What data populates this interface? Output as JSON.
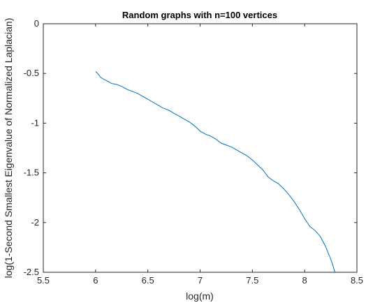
{
  "chart_data": {
    "type": "line",
    "title": "Random graphs with n=100 vertices",
    "xlabel": "log(m)",
    "ylabel": "log(1-Second Smallest Eigenvalue of Normalized Laplacian)",
    "xlim": [
      5.5,
      8.5
    ],
    "ylim": [
      -2.5,
      0
    ],
    "xticks": [
      5.5,
      6,
      6.5,
      7,
      7.5,
      8,
      8.5
    ],
    "xtick_labels": [
      "5.5",
      "6",
      "6.5",
      "7",
      "7.5",
      "8",
      "8.5"
    ],
    "yticks": [
      -2.5,
      -2,
      -1.5,
      -1,
      -0.5,
      0
    ],
    "ytick_labels": [
      "-2.5",
      "-2",
      "-1.5",
      "-1",
      "-0.5",
      "0"
    ],
    "grid": false,
    "line_color": "#0072bd",
    "series": [
      {
        "x": [
          6.0,
          6.02,
          6.05,
          6.08,
          6.12,
          6.15,
          6.2,
          6.25,
          6.3,
          6.35,
          6.4,
          6.45,
          6.5,
          6.55,
          6.6,
          6.65,
          6.7,
          6.75,
          6.8,
          6.85,
          6.9,
          6.95,
          7.0,
          7.05,
          7.1,
          7.15,
          7.2,
          7.25,
          7.3,
          7.35,
          7.4,
          7.45,
          7.5,
          7.55,
          7.6,
          7.65,
          7.7,
          7.75,
          7.8,
          7.85,
          7.9,
          7.95,
          8.0,
          8.05,
          8.1,
          8.15,
          8.2,
          8.25,
          8.27,
          8.29
        ],
        "y": [
          -0.48,
          -0.5,
          -0.54,
          -0.56,
          -0.58,
          -0.6,
          -0.61,
          -0.63,
          -0.66,
          -0.68,
          -0.7,
          -0.73,
          -0.76,
          -0.79,
          -0.82,
          -0.85,
          -0.87,
          -0.9,
          -0.93,
          -0.96,
          -0.99,
          -1.03,
          -1.08,
          -1.11,
          -1.13,
          -1.16,
          -1.2,
          -1.22,
          -1.24,
          -1.27,
          -1.3,
          -1.33,
          -1.37,
          -1.42,
          -1.47,
          -1.54,
          -1.58,
          -1.61,
          -1.66,
          -1.72,
          -1.79,
          -1.87,
          -1.96,
          -2.04,
          -2.08,
          -2.14,
          -2.24,
          -2.37,
          -2.43,
          -2.5
        ]
      }
    ]
  }
}
